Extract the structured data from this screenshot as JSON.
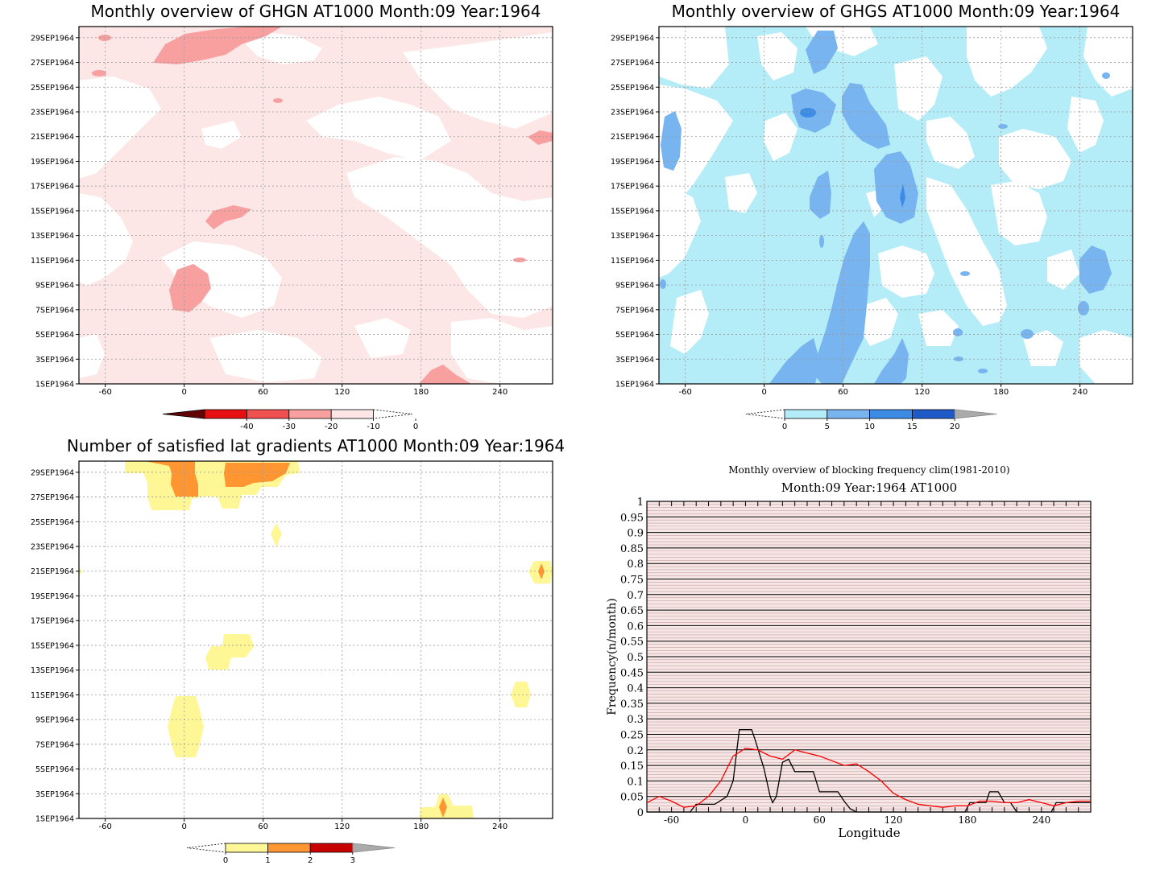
{
  "panels": {
    "ghgn": {
      "title": "Monthly overview of GHGN AT1000 Month:09 Year:1964"
    },
    "ghgs": {
      "title": "Monthly overview of GHGS AT1000 Month:09 Year:1964"
    },
    "lat": {
      "title": "Number of satisfied lat gradients AT1000 Month:09 Year:1964"
    },
    "freq": {
      "title": "Monthly overview of blocking frequency clim(1981-2010)",
      "subtitle": "Month:09 Year:1964  AT1000"
    }
  },
  "colors": {
    "ghgn_levels": [
      "#640505",
      "#e61010",
      "#f05050",
      "#f8a0a0",
      "#fde6e6"
    ],
    "ghgs_levels": [
      "#b4ecf8",
      "#78b4f0",
      "#3c8ce6",
      "#1e5ac8"
    ],
    "lat_levels": [
      "#fff796",
      "#ff9632",
      "#c80000"
    ]
  },
  "chart_data": [
    {
      "type": "heatmap",
      "title": "Monthly overview of GHGN AT1000 Month:09 Year:1964",
      "xlim": [
        -80,
        280
      ],
      "x_ticks": [
        "-60",
        "0",
        "60",
        "120",
        "180",
        "240"
      ],
      "y_ticks": [
        "1SEP1964",
        "3SEP1964",
        "5SEP1964",
        "7SEP1964",
        "9SEP1964",
        "11SEP1964",
        "13SEP1964",
        "15SEP1964",
        "17SEP1964",
        "19SEP1964",
        "21SEP1964",
        "23SEP1964",
        "25SEP1964",
        "27SEP1964",
        "29SEP1964"
      ],
      "colorbar": {
        "labels": [
          "-40",
          "-30",
          "-20",
          "-10",
          "0"
        ]
      }
    },
    {
      "type": "heatmap",
      "title": "Monthly overview of GHGS AT1000 Month:09 Year:1964",
      "xlim": [
        -80,
        280
      ],
      "x_ticks": [
        "-60",
        "0",
        "60",
        "120",
        "180",
        "240"
      ],
      "y_ticks": [
        "1SEP1964",
        "3SEP1964",
        "5SEP1964",
        "7SEP1964",
        "9SEP1964",
        "11SEP1964",
        "13SEP1964",
        "15SEP1964",
        "17SEP1964",
        "19SEP1964",
        "21SEP1964",
        "23SEP1964",
        "25SEP1964",
        "27SEP1964",
        "29SEP1964"
      ],
      "colorbar": {
        "labels": [
          "0",
          "5",
          "10",
          "15",
          "20"
        ]
      }
    },
    {
      "type": "heatmap",
      "title": "Number of satisfied lat gradients AT1000 Month:09 Year:1964",
      "xlim": [
        -80,
        280
      ],
      "x_ticks": [
        "-60",
        "0",
        "60",
        "120",
        "180",
        "240"
      ],
      "y_ticks": [
        "1SEP1964",
        "3SEP1964",
        "5SEP1964",
        "7SEP1964",
        "9SEP1964",
        "11SEP1964",
        "13SEP1964",
        "15SEP1964",
        "17SEP1964",
        "19SEP1964",
        "21SEP1964",
        "23SEP1964",
        "25SEP1964",
        "27SEP1964",
        "29SEP1964"
      ],
      "colorbar": {
        "labels": [
          "0",
          "1",
          "2",
          "3"
        ]
      }
    },
    {
      "type": "line",
      "title": "Monthly overview of blocking frequency clim(1981-2010)",
      "subtitle": "Month:09 Year:1964  AT1000",
      "xlabel": "Longitude",
      "ylabel": "Frequency(n/month)",
      "xlim": [
        -80,
        280
      ],
      "ylim": [
        0,
        1
      ],
      "x_ticks": [
        "-60",
        "0",
        "60",
        "120",
        "180",
        "240"
      ],
      "y_ticks": [
        "0",
        "0.05",
        "0.1",
        "0.15",
        "0.2",
        "0.25",
        "0.3",
        "0.35",
        "0.4",
        "0.45",
        "0.5",
        "0.55",
        "0.6",
        "0.65",
        "0.7",
        "0.75",
        "0.8",
        "0.85",
        "0.9",
        "0.95",
        "1"
      ],
      "series": [
        {
          "color": "#000000",
          "x": [
            -80,
            -45,
            -40,
            -25,
            -15,
            -10,
            -5,
            5,
            8,
            15,
            20,
            22,
            25,
            30,
            35,
            40,
            45,
            55,
            60,
            75,
            80,
            85,
            90,
            178,
            182,
            195,
            198,
            205,
            210,
            215,
            220,
            248,
            252,
            280
          ],
          "values": [
            0,
            0,
            0.025,
            0.025,
            0.05,
            0.1,
            0.265,
            0.265,
            0.23,
            0.14,
            0.05,
            0.03,
            0.05,
            0.16,
            0.17,
            0.13,
            0.13,
            0.13,
            0.065,
            0.065,
            0.035,
            0.01,
            0,
            0,
            0.03,
            0.03,
            0.065,
            0.065,
            0.03,
            0.03,
            0,
            0,
            0.03,
            0.03
          ]
        },
        {
          "color": "#ff0000",
          "x": [
            -80,
            -70,
            -60,
            -50,
            -40,
            -30,
            -20,
            -10,
            0,
            10,
            20,
            30,
            40,
            50,
            60,
            70,
            80,
            90,
            100,
            110,
            120,
            130,
            140,
            150,
            160,
            170,
            180,
            190,
            200,
            210,
            220,
            230,
            240,
            250,
            260,
            270,
            280
          ],
          "values": [
            0.03,
            0.05,
            0.035,
            0.015,
            0.02,
            0.05,
            0.1,
            0.18,
            0.205,
            0.2,
            0.18,
            0.17,
            0.2,
            0.19,
            0.18,
            0.165,
            0.15,
            0.155,
            0.13,
            0.1,
            0.06,
            0.04,
            0.025,
            0.02,
            0.015,
            0.02,
            0.02,
            0.035,
            0.035,
            0.03,
            0.03,
            0.04,
            0.03,
            0.02,
            0.03,
            0.035,
            0.035
          ]
        }
      ]
    }
  ]
}
